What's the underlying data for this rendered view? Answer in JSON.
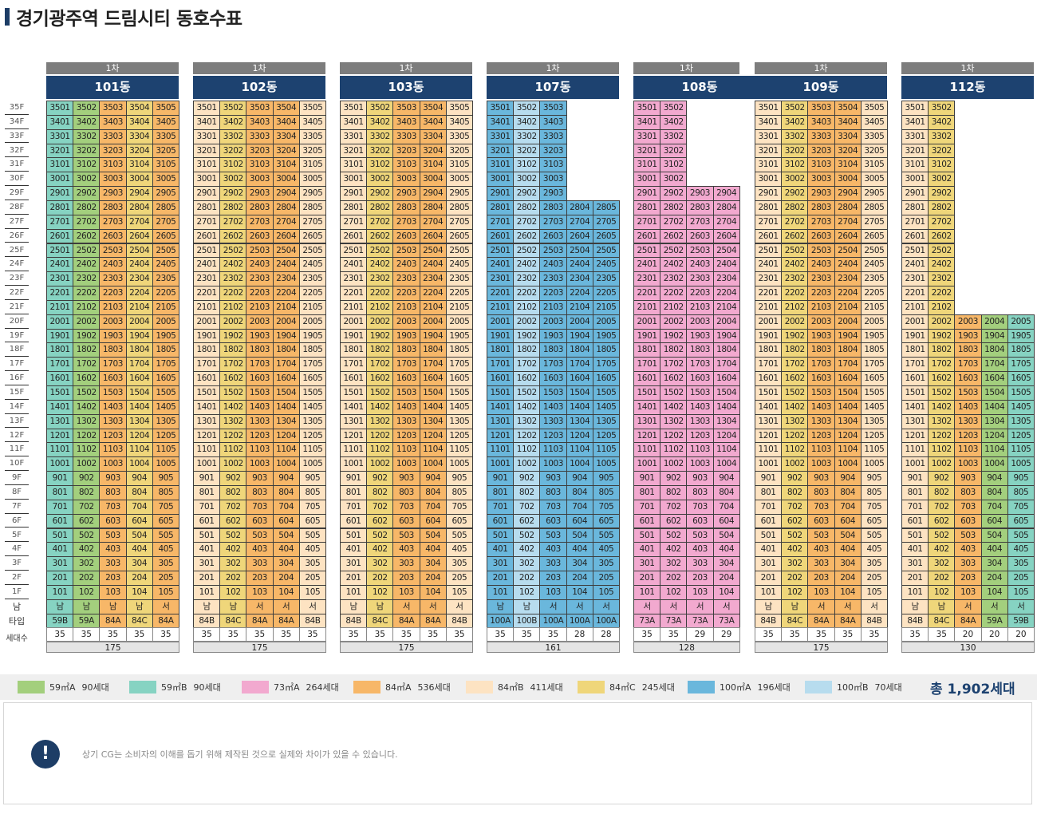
{
  "page": {
    "title": "경기광주역 드림시티 동호수표"
  },
  "floors": [
    "35F",
    "34F",
    "33F",
    "32F",
    "31F",
    "30F",
    "29F",
    "28F",
    "27F",
    "26F",
    "25F",
    "24F",
    "23F",
    "22F",
    "21F",
    "20F",
    "19F",
    "18F",
    "17F",
    "16F",
    "15F",
    "14F",
    "13F",
    "12F",
    "11F",
    "10F",
    "9F",
    "8F",
    "7F",
    "6F",
    "5F",
    "4F",
    "3F",
    "2F",
    "1F"
  ],
  "row_labels": {
    "direction": "남",
    "type": "타입",
    "households": "세대수"
  },
  "colors": {
    "59A": "#a3cf7d",
    "59B": "#86d3c2",
    "73A": "#f2a9cf",
    "84A": "#f7b768",
    "84B": "#fde3c2",
    "84C": "#efd67a",
    "100A": "#6ab7dc",
    "100B": "#b7dcee"
  },
  "buildings": [
    {
      "phase": "1차",
      "name": "101동",
      "max_floor": [
        35,
        35,
        35,
        35,
        35
      ],
      "types": [
        "59B",
        "59A",
        "84A",
        "84C",
        "84A"
      ],
      "directions": [
        "남",
        "남",
        "남",
        "남",
        "서"
      ],
      "counts": [
        "35",
        "35",
        "35",
        "35",
        "35"
      ],
      "total": "175"
    },
    {
      "phase": "1차",
      "name": "102동",
      "max_floor": [
        35,
        35,
        35,
        35,
        35
      ],
      "types": [
        "84B",
        "84C",
        "84A",
        "84A",
        "84B"
      ],
      "directions": [
        "남",
        "남",
        "서",
        "서",
        "서"
      ],
      "counts": [
        "35",
        "35",
        "35",
        "35",
        "35"
      ],
      "total": "175"
    },
    {
      "phase": "1차",
      "name": "103동",
      "max_floor": [
        35,
        35,
        35,
        35,
        35
      ],
      "types": [
        "84B",
        "84C",
        "84A",
        "84A",
        "84B"
      ],
      "directions": [
        "남",
        "남",
        "서",
        "서",
        "서"
      ],
      "counts": [
        "35",
        "35",
        "35",
        "35",
        "35"
      ],
      "total": "175"
    },
    {
      "phase": "1차",
      "name": "107동",
      "max_floor": [
        35,
        35,
        35,
        28,
        28
      ],
      "types": [
        "100A",
        "100B",
        "100A",
        "100A",
        "100A"
      ],
      "directions": [
        "남",
        "남",
        "서",
        "서",
        "서"
      ],
      "counts": [
        "35",
        "35",
        "35",
        "28",
        "28"
      ],
      "total": "161"
    },
    {
      "phase": "1차",
      "name": "108동",
      "max_floor": [
        35,
        35,
        29,
        29
      ],
      "types": [
        "73A",
        "73A",
        "73A",
        "73A"
      ],
      "directions": [
        "서",
        "서",
        "서",
        "서"
      ],
      "counts": [
        "35",
        "35",
        "29",
        "29"
      ],
      "total": "128"
    },
    {
      "phase": "1차",
      "name": "109동",
      "max_floor": [
        35,
        35,
        35,
        35,
        35
      ],
      "types": [
        "84B",
        "84C",
        "84A",
        "84A",
        "84B"
      ],
      "directions": [
        "남",
        "남",
        "서",
        "서",
        "서"
      ],
      "counts": [
        "35",
        "35",
        "35",
        "35",
        "35"
      ],
      "total": "175"
    },
    {
      "phase": "1차",
      "name": "112동",
      "max_floor": [
        35,
        35,
        20,
        20,
        20
      ],
      "types": [
        "84B",
        "84C",
        "84A",
        "59A",
        "59B"
      ],
      "directions": [
        "남",
        "남",
        "서",
        "서",
        "서"
      ],
      "counts": [
        "35",
        "35",
        "20",
        "20",
        "20"
      ],
      "total": "130"
    }
  ],
  "legend": [
    {
      "type": "59A",
      "label": "59㎡A",
      "count": "90세대"
    },
    {
      "type": "59B",
      "label": "59㎡B",
      "count": "90세대"
    },
    {
      "type": "73A",
      "label": "73㎡A",
      "count": "264세대"
    },
    {
      "type": "84A",
      "label": "84㎡A",
      "count": "536세대"
    },
    {
      "type": "84B",
      "label": "84㎡B",
      "count": "411세대"
    },
    {
      "type": "84C",
      "label": "84㎡C",
      "count": "245세대"
    },
    {
      "type": "100A",
      "label": "100㎡A",
      "count": "196세대"
    },
    {
      "type": "100B",
      "label": "100㎡B",
      "count": "70세대"
    }
  ],
  "legend_total": "총 1,902세대",
  "notice": {
    "icon": "!",
    "text": "상기 CG는 소비자의 이해를 돕기 위해 제작된 것으로 실제와 차이가 있을 수 있습니다."
  }
}
